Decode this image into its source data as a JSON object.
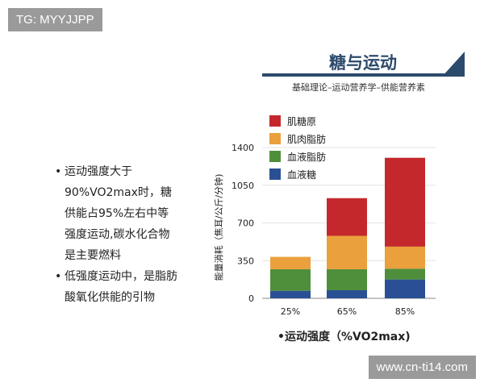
{
  "watermarks": {
    "top_left": "TG: MYYJJPP",
    "bottom_right": "www.cn-ti14.com"
  },
  "slide": {
    "title": "糖与运动",
    "subtitle": "基础理论–运动营养学–供能营养素",
    "bullets": [
      {
        "lines": [
          "运动强度大于",
          "90%VO2max时，糖",
          "供能占95%左右中等",
          "强度运动,碳水化合物",
          "是主要燃料"
        ]
      },
      {
        "lines": [
          "低强度运动中，是脂肪",
          "酸氧化供能的引物"
        ]
      }
    ],
    "accent": "#2c4a6b"
  },
  "chart_data": {
    "type": "bar",
    "stacked": true,
    "categories": [
      "25%",
      "65%",
      "85%"
    ],
    "series": [
      {
        "name": "血液糖",
        "color": "#2b4f94",
        "values": [
          70,
          75,
          175
        ]
      },
      {
        "name": "血液脂肪",
        "color": "#4f8f3b",
        "values": [
          200,
          195,
          100
        ]
      },
      {
        "name": "肌肉脂肪",
        "color": "#eaa03c",
        "values": [
          115,
          310,
          205
        ]
      },
      {
        "name": "肌糖原",
        "color": "#c4282c",
        "values": [
          0,
          350,
          825
        ]
      }
    ],
    "legend_order": [
      "肌糖原",
      "肌肉脂肪",
      "血液脂肪",
      "血液糖"
    ],
    "ylabel": "能量消耗（焦耳/公斤/分钟)",
    "xlabel": "•运动强度（%VO2max)",
    "yticks": [
      "0",
      "350",
      "700",
      "1050",
      "1400"
    ],
    "ylim": [
      0,
      1400
    ],
    "grid": true,
    "legend_placement": "top-left"
  }
}
